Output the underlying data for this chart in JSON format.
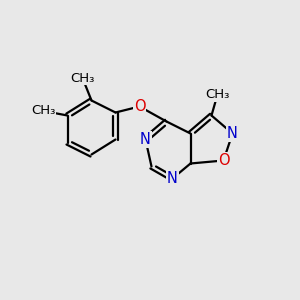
{
  "background_color": "#e8e8e8",
  "bond_color": "#000000",
  "n_color": "#0000cc",
  "o_color": "#dd0000",
  "bond_width": 1.6,
  "font_size": 10.5,
  "methyl_font_size": 9.5,
  "figsize": [
    3.0,
    3.0
  ],
  "dpi": 100,
  "xlim": [
    0,
    10
  ],
  "ylim": [
    0,
    10
  ]
}
